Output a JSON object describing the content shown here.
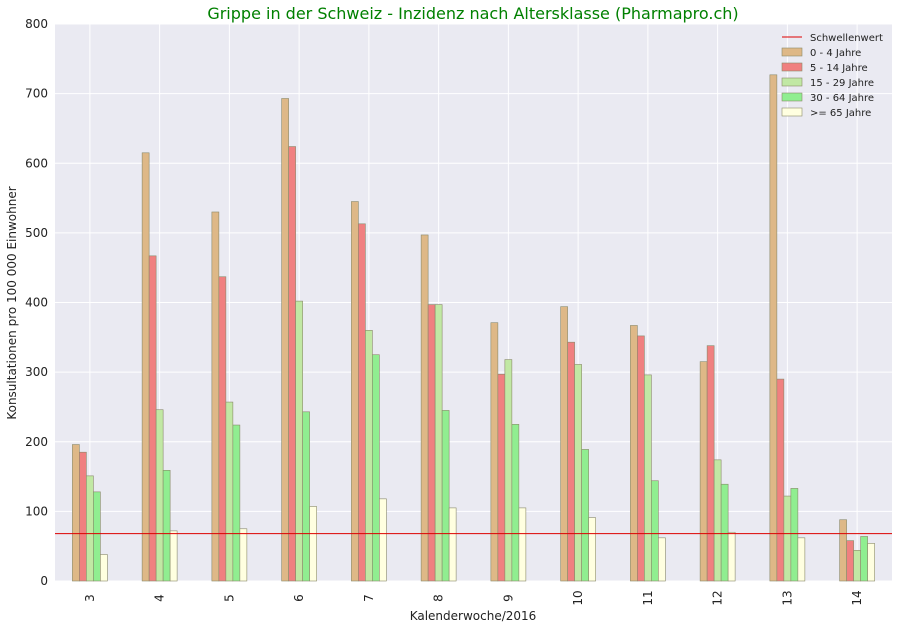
{
  "chart_data": {
    "type": "bar",
    "title": "Grippe in der Schweiz - Inzidenz nach Altersklasse (Pharmapro.ch)",
    "title_color": "#008000",
    "xlabel": "Kalenderwoche/2016",
    "ylabel": "Konsultationen pro 100 000 Einwohner",
    "categories": [
      "3",
      "4",
      "5",
      "6",
      "7",
      "8",
      "9",
      "10",
      "11",
      "12",
      "13",
      "14"
    ],
    "ylim": [
      0,
      800
    ],
    "yticks": [
      0,
      100,
      200,
      300,
      400,
      500,
      600,
      700,
      800
    ],
    "grid": true,
    "background_color": "#eaeaf2",
    "legend_position": "top-right",
    "threshold": {
      "name": "Schwellenwert",
      "value": 68,
      "color": "#dd0000"
    },
    "series": [
      {
        "name": "0 - 4 Jahre",
        "color": "#deb887",
        "values": [
          196,
          615,
          530,
          693,
          545,
          497,
          371,
          394,
          367,
          315,
          727,
          88
        ]
      },
      {
        "name": "5 - 14 Jahre",
        "color": "#f08080",
        "values": [
          185,
          467,
          437,
          624,
          513,
          397,
          297,
          343,
          352,
          338,
          290,
          58
        ]
      },
      {
        "name": "15 - 29 Jahre",
        "color": "#c1e8a4",
        "values": [
          151,
          246,
          257,
          402,
          360,
          397,
          318,
          311,
          296,
          174,
          122,
          44
        ]
      },
      {
        "name": "30 - 64 Jahre",
        "color": "#90ee90",
        "values": [
          128,
          159,
          224,
          243,
          325,
          245,
          225,
          189,
          144,
          139,
          133,
          64
        ]
      },
      {
        "name": ">= 65 Jahre",
        "color": "#ffffe0",
        "values": [
          38,
          72,
          75,
          107,
          118,
          105,
          105,
          91,
          62,
          70,
          62,
          54
        ]
      }
    ]
  }
}
